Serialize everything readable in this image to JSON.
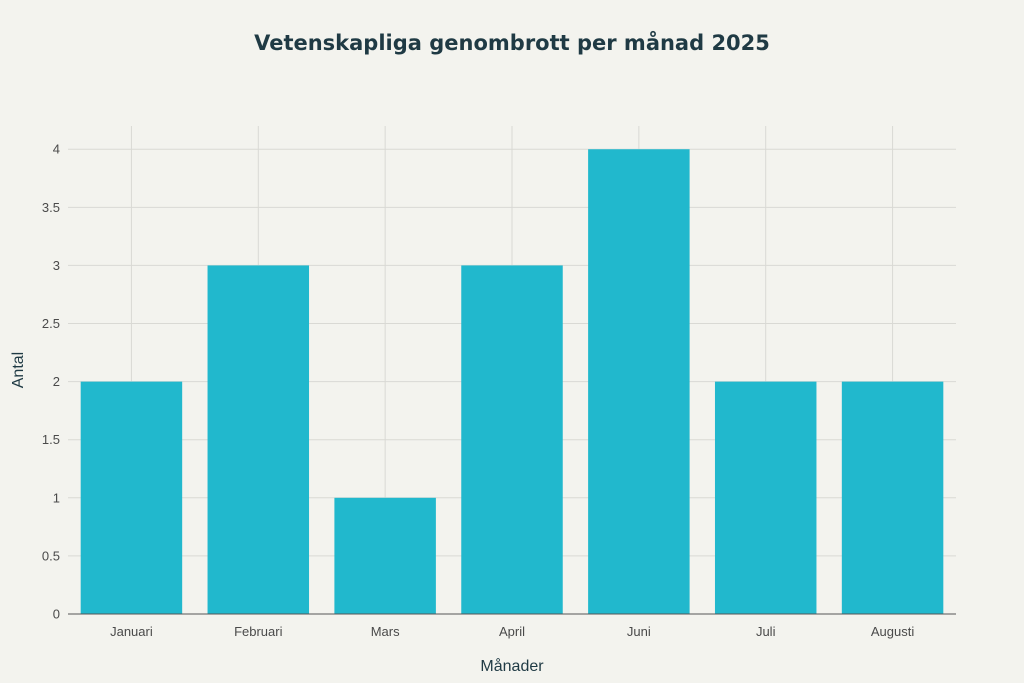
{
  "chart_data": {
    "type": "bar",
    "title": "Vetenskapliga genombrott per månad 2025",
    "xlabel": "Månader",
    "ylabel": "Antal",
    "categories": [
      "Januari",
      "Februari",
      "Mars",
      "April",
      "Juni",
      "Juli",
      "Augusti"
    ],
    "values": [
      2,
      3,
      1,
      3,
      4,
      2,
      2
    ],
    "ylim": [
      0,
      4.2
    ],
    "yticks": [
      0,
      0.5,
      1,
      1.5,
      2,
      2.5,
      3,
      3.5,
      4
    ],
    "ytick_labels": [
      "0",
      "0.5",
      "1",
      "1.5",
      "2",
      "2.5",
      "3",
      "3.5",
      "4"
    ],
    "grid": true,
    "legend": "none",
    "colors": {
      "bar": "#21b8cd",
      "background": "#f3f3ee",
      "grid": "#d9d9d4",
      "axis": "#555555",
      "title": "#1f3a44"
    }
  }
}
